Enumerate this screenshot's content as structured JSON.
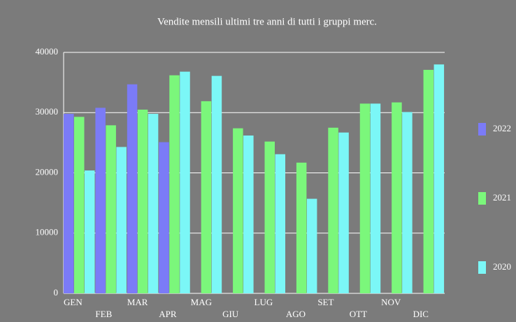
{
  "chart_data": {
    "type": "bar",
    "title": "Vendite mensili ultimi tre anni di tutti i gruppi merc.",
    "categories": [
      "GEN",
      "FEB",
      "MAR",
      "APR",
      "MAG",
      "GIU",
      "LUG",
      "AGO",
      "SET",
      "OTT",
      "NOV",
      "DIC"
    ],
    "series": [
      {
        "name": "2022",
        "color": "#7b7bf7",
        "values": [
          29800,
          30800,
          34700,
          25100,
          null,
          null,
          null,
          null,
          null,
          null,
          null,
          null
        ]
      },
      {
        "name": "2021",
        "color": "#7bf77b",
        "values": [
          29300,
          27900,
          30500,
          36200,
          31900,
          27400,
          25200,
          21700,
          27500,
          31500,
          31700,
          37100
        ]
      },
      {
        "name": "2020",
        "color": "#7bf7f7",
        "values": [
          20400,
          24300,
          29800,
          36800,
          36100,
          26200,
          23100,
          15700,
          26700,
          31500,
          30100,
          38000
        ]
      }
    ],
    "ylim": [
      0,
      40000
    ],
    "yticks": [
      0,
      10000,
      20000,
      30000,
      40000
    ],
    "grid": true,
    "legend": "right"
  }
}
